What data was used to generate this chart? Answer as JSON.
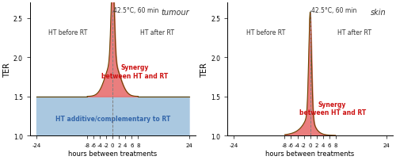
{
  "fig_width": 5.0,
  "fig_height": 2.03,
  "dpi": 100,
  "ylim": [
    1.0,
    2.7
  ],
  "yticks": [
    1.0,
    1.5,
    2.0,
    2.5
  ],
  "xlabel": "hours between treatments",
  "ylabel": "TER",
  "title_left": "tumour",
  "title_right": "skin",
  "temp_label": "42.5°C, 60 min",
  "label_ht_before": "HT before RT",
  "label_ht_after": "HT after RT",
  "label_synergy_left": "Synergy\nbetween HT and RT",
  "label_synergy_right": "Synergy\nbetween HT and RT",
  "label_additive": "HT additive/complementary to RT",
  "color_synergy": "#e87070",
  "color_additive": "#aac8e0",
  "color_border": "#6b4400",
  "additive_level": 1.5,
  "background_color": "#ffffff",
  "xticks_pos": [
    -24,
    -8,
    -6,
    -4,
    -2,
    0,
    2,
    4,
    6,
    8,
    24
  ],
  "xticks_labels": [
    "-24",
    "-8",
    "-6",
    "-4",
    "-2",
    "0",
    "2",
    "4",
    "6",
    "8",
    "24"
  ],
  "xlim": [
    -26,
    26
  ]
}
